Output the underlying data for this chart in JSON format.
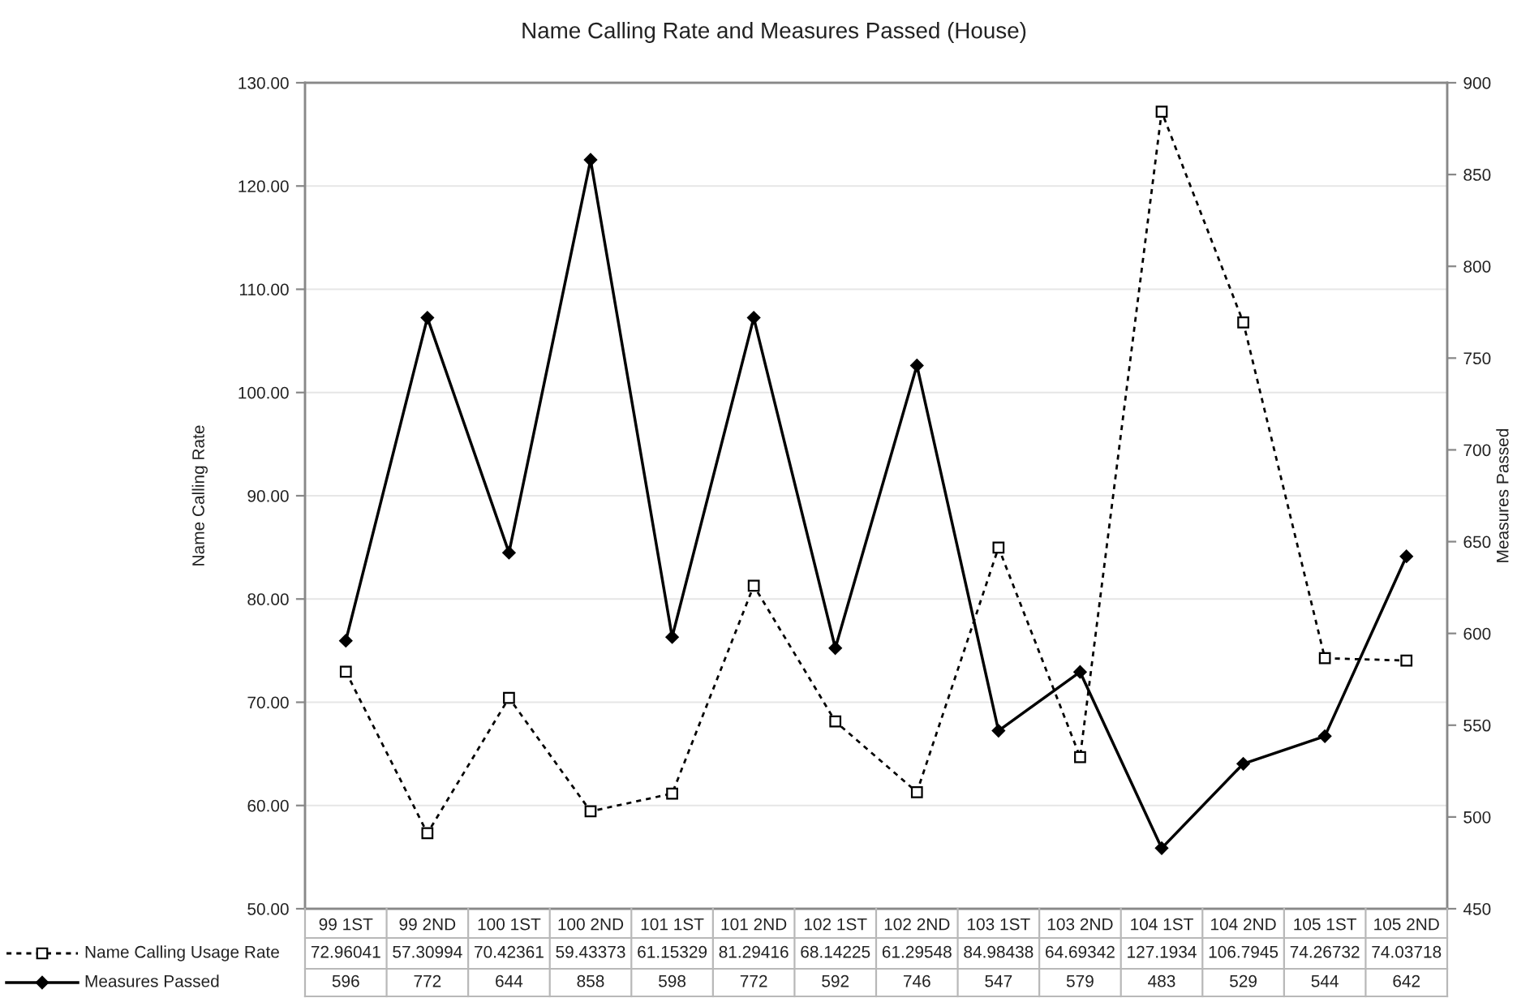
{
  "chart_data": {
    "type": "line",
    "title": "Name Calling Rate and Measures Passed (House)",
    "ylabel": "Name Calling Rate",
    "y2label": "Measures Passed",
    "categories": [
      "99 1ST",
      "99 2ND",
      "100 1ST",
      "100 2ND",
      "101 1ST",
      "101 2ND",
      "102 1ST",
      "102 2ND",
      "103 1ST",
      "103 2ND",
      "104 1ST",
      "104 2ND",
      "105 1ST",
      "105 2ND"
    ],
    "series": [
      {
        "name": "Name Calling Usage Rate",
        "color": "#000000",
        "marker": "square",
        "line_style": "dashed",
        "values": [
          72.96041,
          57.30994,
          70.42361,
          59.43373,
          61.15329,
          81.29416,
          68.14225,
          61.29548,
          84.98438,
          64.69342,
          127.1934,
          106.7945,
          74.26732,
          74.03718
        ]
      },
      {
        "name": "Measures Passed",
        "color": "#000000",
        "marker": "diamond",
        "line_style": "solid",
        "axis": "y2",
        "values": [
          596,
          772,
          644,
          858,
          598,
          772,
          592,
          746,
          547,
          579,
          483,
          529,
          544,
          642
        ]
      }
    ],
    "ylim": [
      50,
      130
    ],
    "yticks": [
      {
        "value": 50,
        "label": "50.00"
      },
      {
        "value": 60,
        "label": "60.00"
      },
      {
        "value": 70,
        "label": "70.00"
      },
      {
        "value": 80,
        "label": "80.00"
      },
      {
        "value": 90,
        "label": "90.00"
      },
      {
        "value": 100,
        "label": "100.00"
      },
      {
        "value": 110,
        "label": "110.00"
      },
      {
        "value": 120,
        "label": "120.00"
      },
      {
        "value": 130,
        "label": "130.00"
      }
    ],
    "y2lim": [
      450,
      900
    ],
    "y2ticks": [
      450,
      500,
      550,
      600,
      650,
      700,
      750,
      800,
      850,
      900
    ],
    "grid": "y",
    "legend": "bottom",
    "data_labels": true
  }
}
